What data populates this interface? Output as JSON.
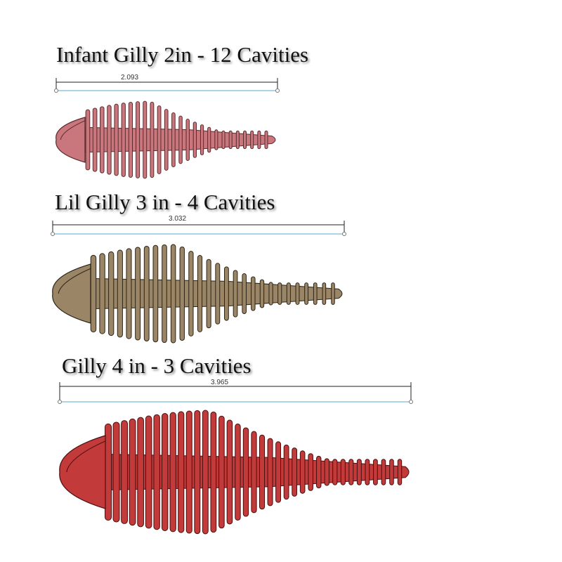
{
  "lures": [
    {
      "title": "Infant Gilly 2in - 12 Cavities",
      "dimension": "2.093",
      "color": "#c9777c",
      "dark": "#5a2a2e"
    },
    {
      "title": "Lil Gilly 3 in - 4 Cavities",
      "dimension": "3.032",
      "color": "#9a8566",
      "dark": "#2c2416"
    },
    {
      "title": "Gilly 4 in - 3 Cavities",
      "dimension": "3.965",
      "color": "#c23a3a",
      "dark": "#4a0e0e"
    }
  ],
  "dimension_line_color": "#222222",
  "reference_line_color": "#8fc6dc"
}
